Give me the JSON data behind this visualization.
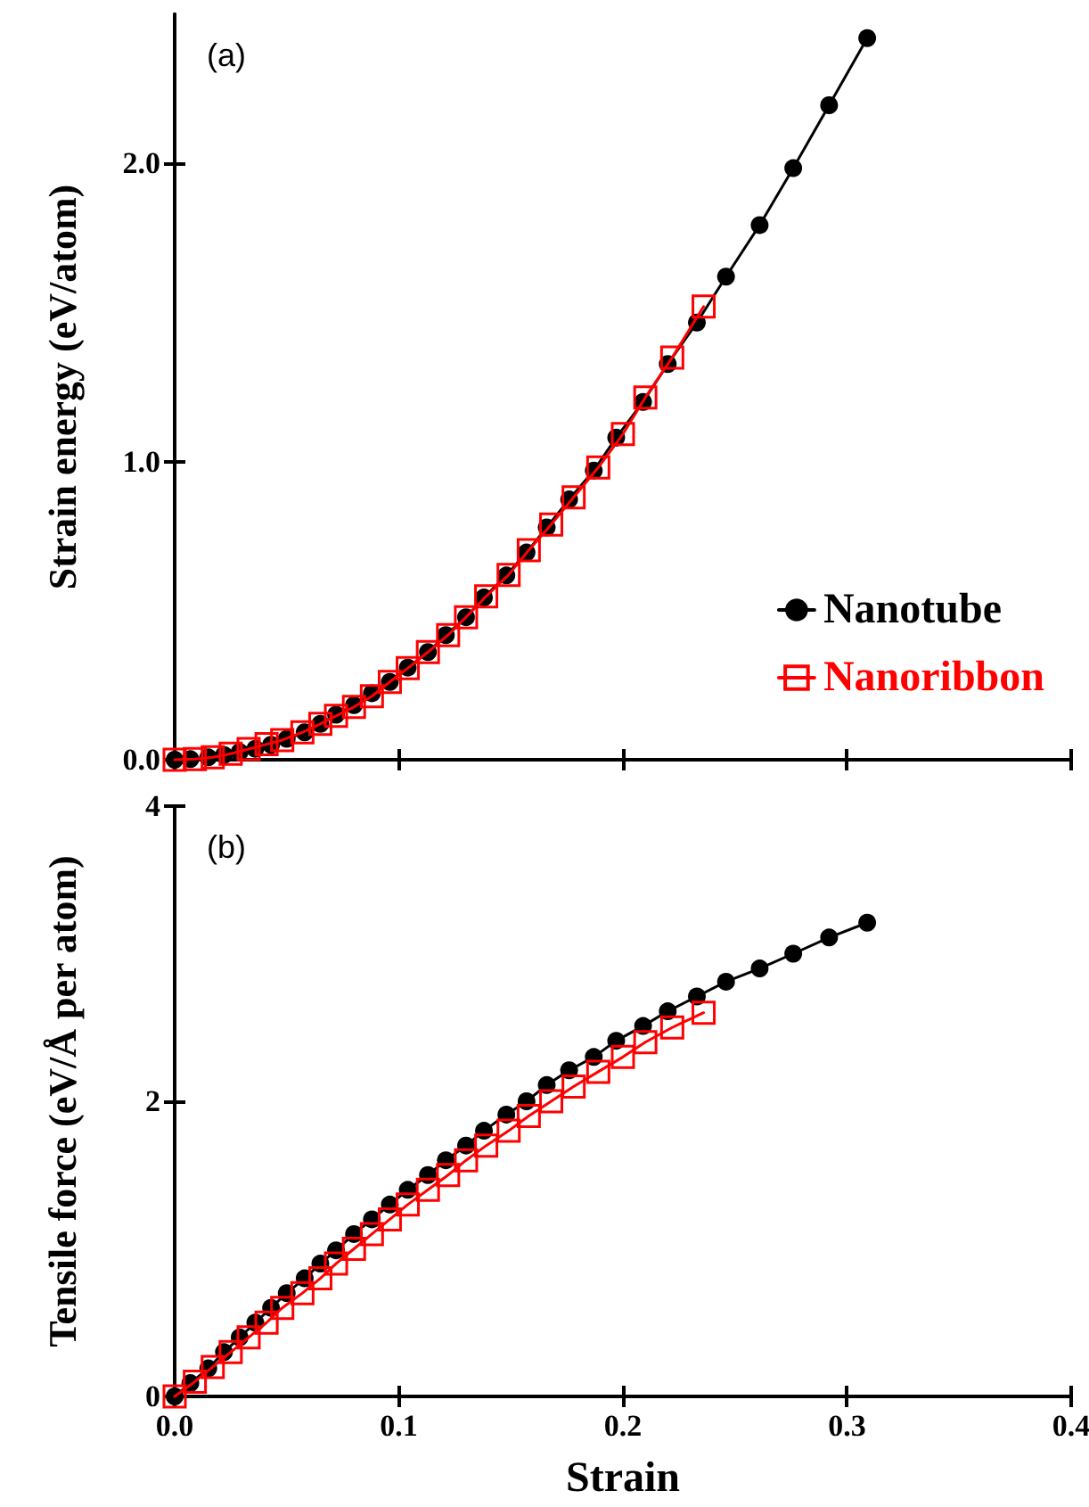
{
  "chart_data": [
    {
      "type": "line",
      "annotations": [
        "(a)"
      ],
      "ylabel": "Strain energy (eV/atom)",
      "xlim": [
        0,
        0.4
      ],
      "xticks": [
        0,
        0.1,
        0.2,
        0.3,
        0.4
      ],
      "ylim": [
        0,
        2.5
      ],
      "yticks": [
        {
          "value": 0,
          "label": "0.0"
        },
        {
          "value": 1,
          "label": "1.0"
        },
        {
          "value": 2,
          "label": "2.0"
        }
      ],
      "tick_labels": "y",
      "legend": "right",
      "line_style": "solid",
      "grid": false,
      "series": [
        {
          "name": "Nanotube",
          "color": "#000000",
          "marker": "circle",
          "x": [
            0,
            0.007,
            0.015,
            0.022,
            0.029,
            0.036,
            0.043,
            0.05,
            0.058,
            0.065,
            0.072,
            0.08,
            0.088,
            0.096,
            0.104,
            0.113,
            0.121,
            0.13,
            0.138,
            0.148,
            0.157,
            0.166,
            0.176,
            0.187,
            0.197,
            0.209,
            0.22,
            0.233,
            0.246,
            0.261,
            0.276,
            0.292,
            0.309
          ],
          "values": [
            0,
            0.002,
            0.008,
            0.016,
            0.026,
            0.037,
            0.05,
            0.07,
            0.092,
            0.12,
            0.151,
            0.183,
            0.223,
            0.261,
            0.309,
            0.361,
            0.418,
            0.478,
            0.544,
            0.618,
            0.695,
            0.779,
            0.873,
            0.97,
            1.08,
            1.2,
            1.327,
            1.466,
            1.62,
            1.793,
            1.984,
            2.195,
            2.42
          ]
        },
        {
          "name": "Nanoribbon",
          "color": "#ff0000",
          "marker": "square",
          "x": [
            0,
            0.009,
            0.017,
            0.025,
            0.033,
            0.041,
            0.048,
            0.057,
            0.065,
            0.072,
            0.08,
            0.088,
            0.096,
            0.104,
            0.113,
            0.122,
            0.13,
            0.139,
            0.149,
            0.158,
            0.168,
            0.178,
            0.189,
            0.2,
            0.21,
            0.222,
            0.236
          ],
          "values": [
            0,
            0.002,
            0.008,
            0.02,
            0.036,
            0.052,
            0.066,
            0.092,
            0.12,
            0.147,
            0.177,
            0.213,
            0.261,
            0.307,
            0.361,
            0.418,
            0.478,
            0.548,
            0.62,
            0.703,
            0.789,
            0.88,
            0.98,
            1.092,
            1.215,
            1.349,
            1.52
          ]
        }
      ]
    },
    {
      "type": "line",
      "annotations": [
        "(b)"
      ],
      "xlabel": "Strain",
      "ylabel": "Tensile force (eV/Å per atom)",
      "xlim": [
        0,
        0.4
      ],
      "xticks": [
        {
          "value": 0,
          "label": "0.0"
        },
        0.1,
        0.2,
        0.3,
        0.4
      ],
      "ylim": [
        0,
        4
      ],
      "yticks": [
        0,
        2,
        4
      ],
      "line_style": "solid",
      "grid": false,
      "series": [
        {
          "color": "#000000",
          "marker": "circle",
          "x": [
            0,
            0.007,
            0.015,
            0.022,
            0.029,
            0.036,
            0.043,
            0.05,
            0.058,
            0.065,
            0.072,
            0.08,
            0.088,
            0.096,
            0.104,
            0.113,
            0.121,
            0.13,
            0.138,
            0.148,
            0.157,
            0.166,
            0.176,
            0.187,
            0.197,
            0.209,
            0.22,
            0.233,
            0.246,
            0.261,
            0.276,
            0.292,
            0.309
          ],
          "values": [
            0,
            0.09,
            0.19,
            0.3,
            0.4,
            0.5,
            0.6,
            0.7,
            0.8,
            0.9,
            0.99,
            1.1,
            1.2,
            1.3,
            1.4,
            1.5,
            1.6,
            1.7,
            1.8,
            1.91,
            2,
            2.11,
            2.21,
            2.3,
            2.41,
            2.51,
            2.61,
            2.71,
            2.81,
            2.9,
            3,
            3.11,
            3.21
          ]
        },
        {
          "color": "#ff0000",
          "marker": "square",
          "x": [
            0,
            0.009,
            0.017,
            0.025,
            0.033,
            0.041,
            0.048,
            0.057,
            0.065,
            0.072,
            0.08,
            0.088,
            0.096,
            0.104,
            0.113,
            0.122,
            0.13,
            0.139,
            0.149,
            0.158,
            0.168,
            0.178,
            0.189,
            0.2,
            0.21,
            0.222,
            0.236
          ],
          "values": [
            0,
            0.1,
            0.2,
            0.3,
            0.4,
            0.5,
            0.6,
            0.7,
            0.8,
            0.9,
            1,
            1.1,
            1.2,
            1.3,
            1.4,
            1.5,
            1.6,
            1.7,
            1.8,
            1.9,
            2,
            2.1,
            2.2,
            2.3,
            2.4,
            2.5,
            2.6
          ]
        }
      ]
    }
  ]
}
